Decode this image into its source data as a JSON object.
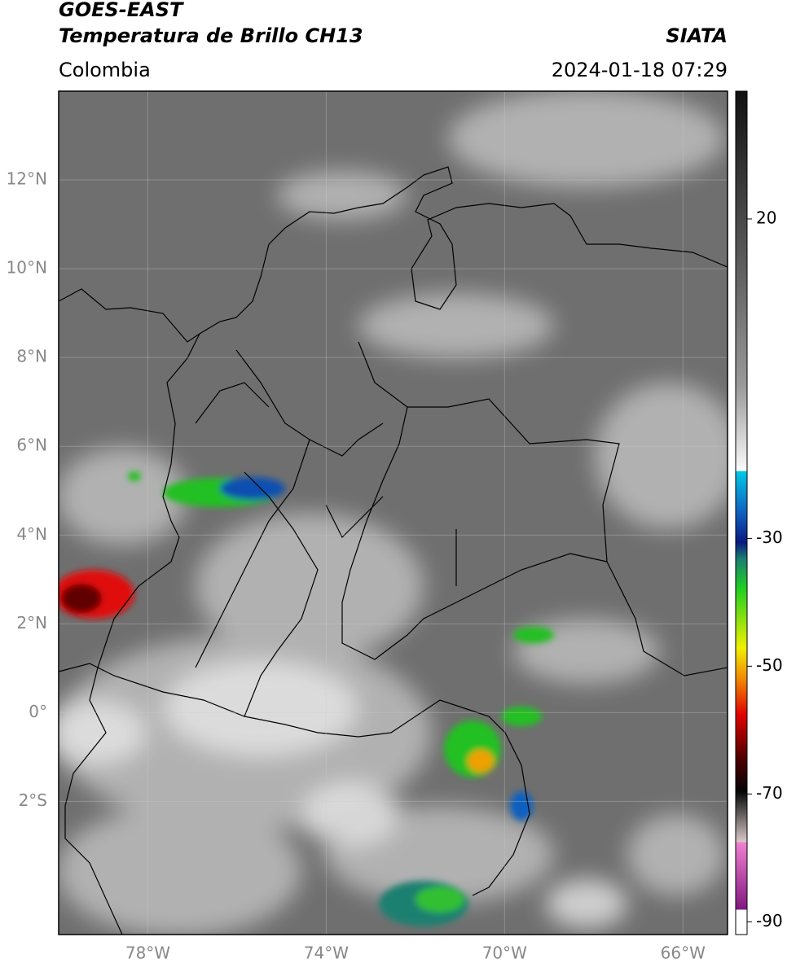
{
  "header": {
    "satellite": "GOES-EAST",
    "product": "Temperatura de Brillo CH13",
    "region": "Colombia",
    "source": "SIATA",
    "datetime": "2024-01-18 07:29"
  },
  "map": {
    "lon_range": [
      -80,
      -65
    ],
    "lat_range": [
      -5,
      14
    ],
    "lat_ticks": [
      {
        "value": 12,
        "label": "12°N"
      },
      {
        "value": 10,
        "label": "10°N"
      },
      {
        "value": 8,
        "label": "8°N"
      },
      {
        "value": 6,
        "label": "6°N"
      },
      {
        "value": 4,
        "label": "4°N"
      },
      {
        "value": 2,
        "label": "2°N"
      },
      {
        "value": 0,
        "label": "0°"
      },
      {
        "value": -2,
        "label": "2°S"
      }
    ],
    "lon_ticks": [
      {
        "value": -78,
        "label": "78°W"
      },
      {
        "value": -74,
        "label": "74°W"
      },
      {
        "value": -70,
        "label": "70°W"
      },
      {
        "value": -66,
        "label": "66°W"
      }
    ],
    "grid": true
  },
  "colorbar": {
    "range": [
      -92,
      40
    ],
    "ticks": [
      20,
      -30,
      -50,
      -70,
      -90
    ]
  }
}
